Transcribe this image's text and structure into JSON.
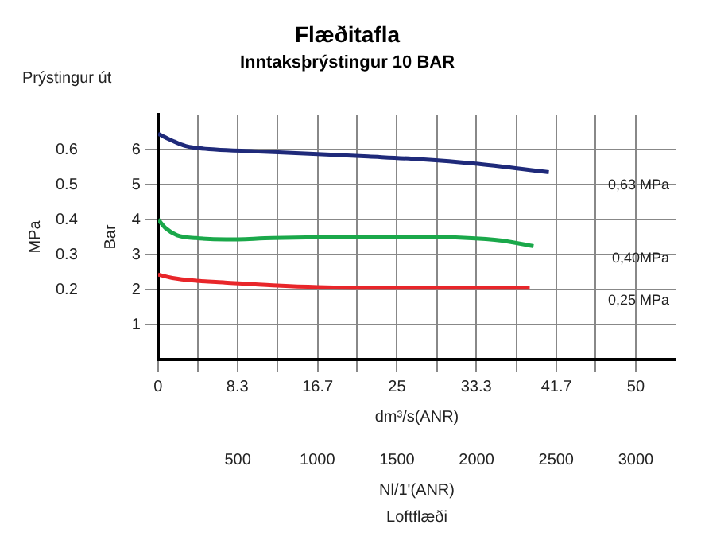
{
  "chart_data": {
    "type": "line",
    "title": "Flæðitafla",
    "subtitle": "Inntaksþrýstingur 10 BAR",
    "xlabel": "dm³/s(ANR)",
    "x2label": "Nl/1'(ANR)",
    "ylabel": "Bar",
    "y2label": "MPa",
    "annotations": [
      "Prýstingur út",
      "Loftflæði"
    ],
    "xlim": [
      0,
      54.17
    ],
    "xticks": [
      0,
      {
        "value": 4.17,
        "label": null
      },
      8.3,
      {
        "value": 12.5,
        "label": null
      },
      16.7,
      {
        "value": 20.8,
        "label": null
      },
      25,
      {
        "value": 29.2,
        "label": null
      },
      33.3,
      {
        "value": 37.5,
        "label": null
      },
      41.7,
      {
        "value": 45.8,
        "label": null
      },
      50
    ],
    "x2lim": [
      0,
      3250
    ],
    "x2ticks": [
      500,
      1000,
      1500,
      2000,
      2500,
      3000
    ],
    "ylim": [
      0,
      7
    ],
    "yticks": [
      1,
      2,
      3,
      4,
      5,
      6
    ],
    "y2lim": [
      0,
      0.7
    ],
    "y2ticks": [
      0.2,
      0.3,
      0.4,
      0.5,
      0.6
    ],
    "grid": true,
    "legend": false,
    "marker": "none",
    "line_style": "solid",
    "data_labels": false,
    "series": [
      {
        "name": "0,63 MPa",
        "color": "#1f2a7a",
        "x": [
          0,
          1.5,
          2.9,
          6,
          10,
          16.7,
          22,
          27.5,
          33,
          40.9
        ],
        "values": [
          6.45,
          6.25,
          6.1,
          6.0,
          5.95,
          5.87,
          5.8,
          5.72,
          5.6,
          5.35
        ]
      },
      {
        "name": "0,40MPa",
        "color": "#1aa84a",
        "x": [
          0,
          0.8,
          2,
          4,
          7.1,
          12,
          20,
          28,
          32,
          36,
          39.3
        ],
        "values": [
          4.0,
          3.75,
          3.55,
          3.47,
          3.43,
          3.47,
          3.5,
          3.5,
          3.48,
          3.4,
          3.24
        ]
      },
      {
        "name": "0,25 MPa",
        "color": "#e8262a",
        "x": [
          0,
          1.5,
          4,
          7,
          12,
          16.7,
          25,
          33,
          38.9
        ],
        "values": [
          2.43,
          2.33,
          2.25,
          2.2,
          2.12,
          2.07,
          2.05,
          2.05,
          2.05
        ]
      }
    ]
  }
}
